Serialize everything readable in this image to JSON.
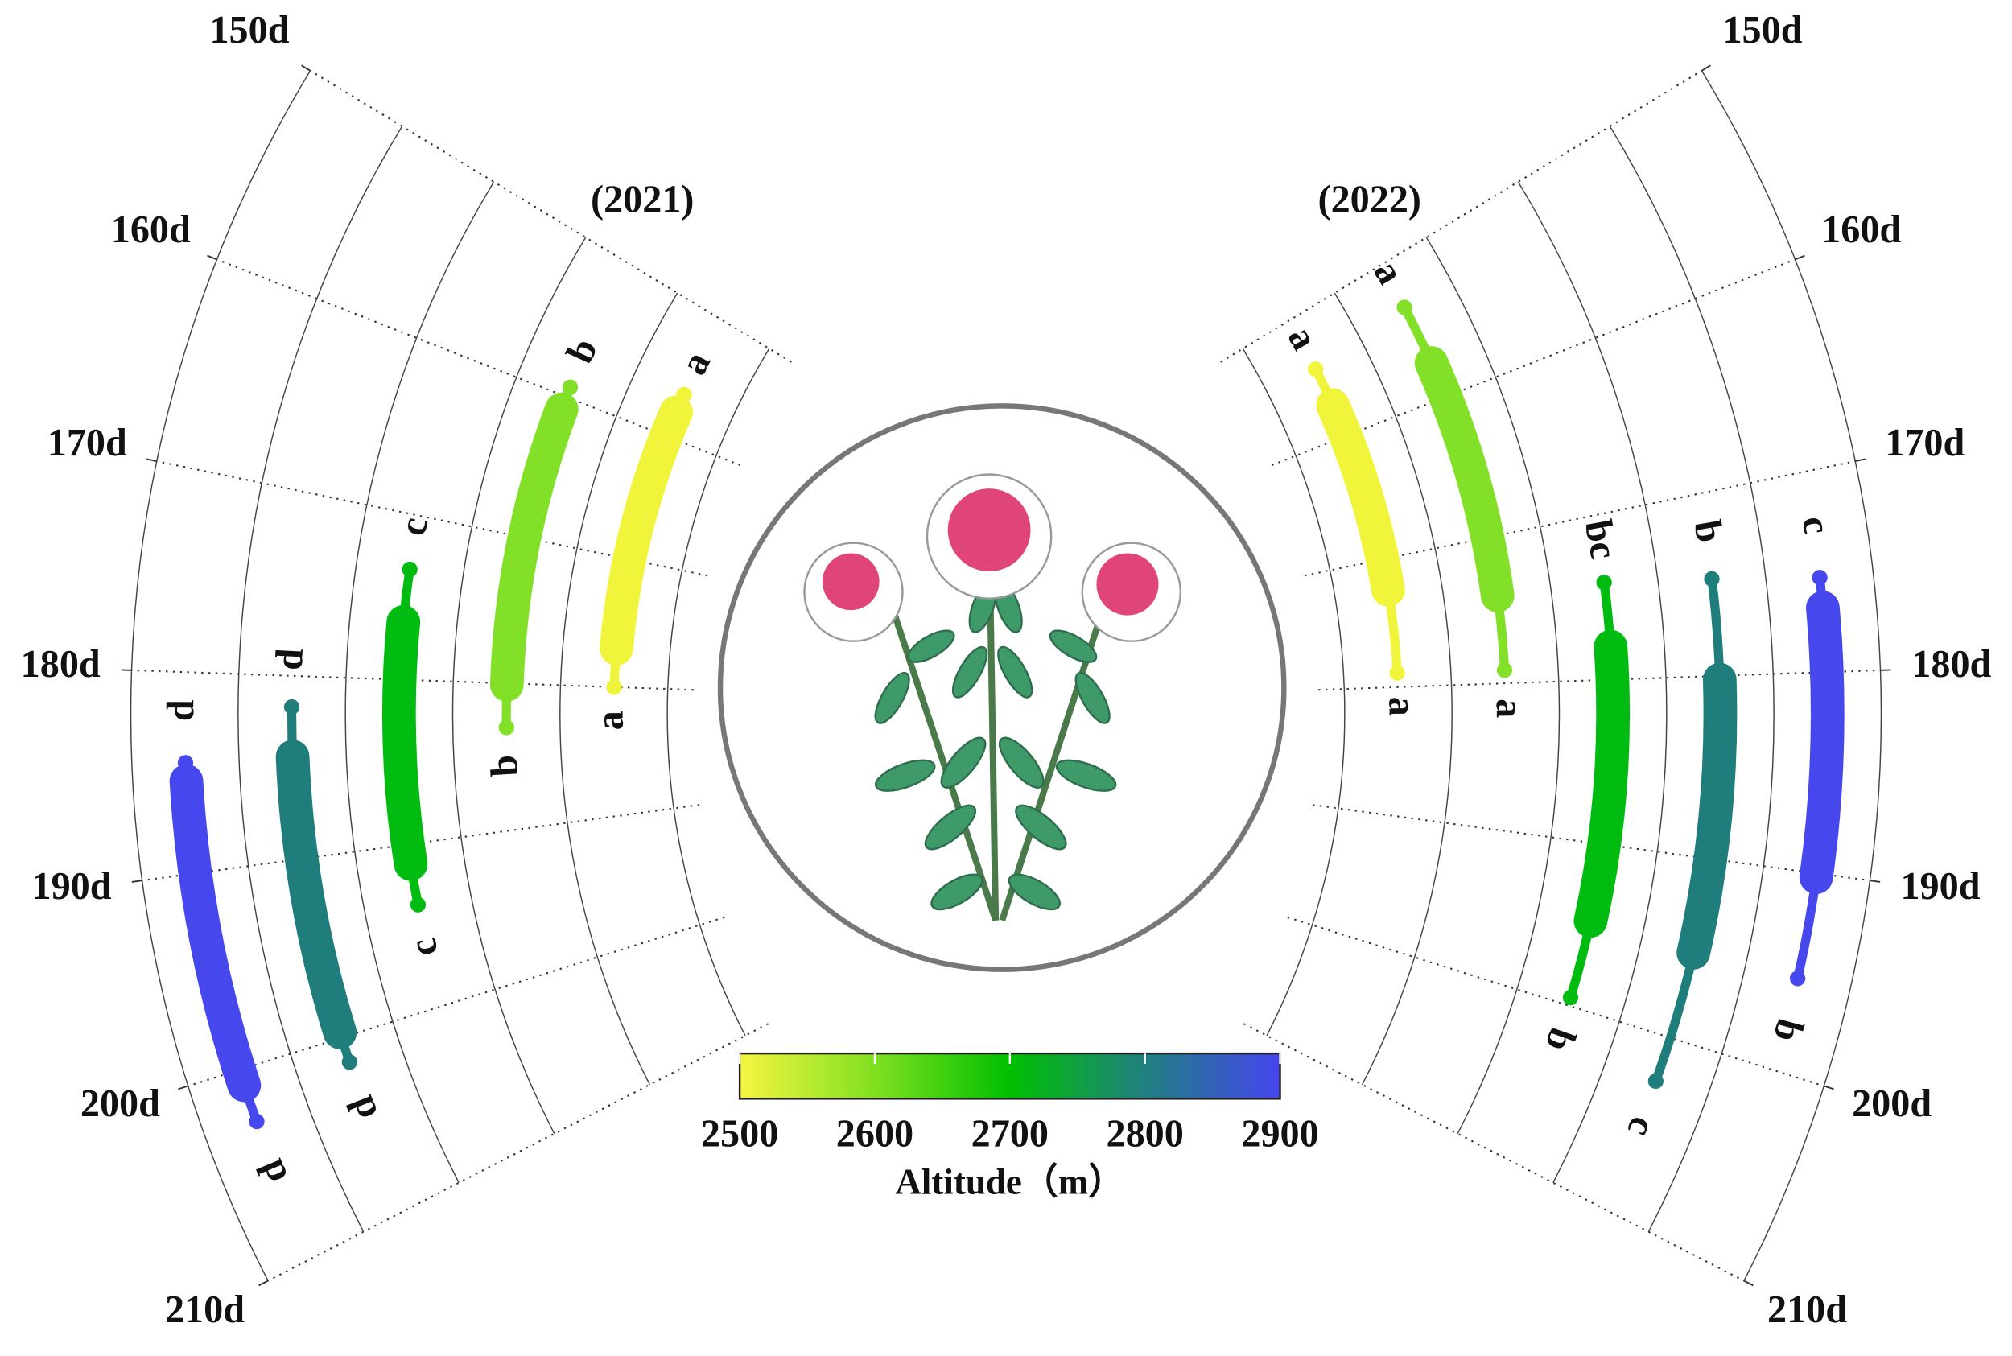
{
  "chart_data": {
    "type": "polar-range",
    "axis": {
      "lim": [
        150,
        210
      ],
      "ticks": [
        {
          "value": 150,
          "label": "150d"
        },
        {
          "value": 160,
          "label": "160d"
        },
        {
          "value": 170,
          "label": "170d"
        },
        {
          "value": 180,
          "label": "180d"
        },
        {
          "value": 190,
          "label": "190d"
        },
        {
          "value": 200,
          "label": "200d"
        },
        {
          "value": 210,
          "label": "210d"
        }
      ]
    },
    "panels": [
      {
        "label": "(2021)",
        "side": "left",
        "bars": [
          {
            "color": "#f0f53c",
            "values": [
              156.5,
              158,
              177,
              180
            ],
            "letters": [
              "a",
              "a"
            ]
          },
          {
            "color": "#82e028",
            "values": [
              159.3,
              160.9,
              180.1,
              183
            ],
            "letters": [
              "b",
              "b"
            ]
          },
          {
            "color": "#00bb10",
            "values": [
              173.3,
              176.5,
              191.2,
              193.7
            ],
            "letters": [
              "c",
              "c"
            ]
          },
          {
            "color": "#1f7e7c",
            "values": [
              181.7,
              184.4,
              199.7,
              201.4
            ],
            "letters": [
              "d",
              "d"
            ]
          },
          {
            "color": "#4648ee",
            "values": [
              184.5,
              185.4,
              200.8,
              202.7
            ],
            "letters": [
              "d",
              "d"
            ]
          }
        ]
      },
      {
        "label": "(2022)",
        "side": "right",
        "bars": [
          {
            "color": "#f0f53c",
            "values": [
              154.3,
              157.4,
              172.4,
              178.9
            ],
            "letters": [
              "a",
              "a"
            ]
          },
          {
            "color": "#82e028",
            "values": [
              153.3,
              157.5,
              174,
              179.1
            ],
            "letters": [
              "a",
              "a"
            ]
          },
          {
            "color": "#00bb10",
            "values": [
              174.1,
              178,
              194.7,
              199.5
            ],
            "letters": [
              "bc",
              "b"
            ]
          },
          {
            "color": "#1f7e7c",
            "values": [
              174.7,
              180.2,
              195.2,
              202.5
            ],
            "letters": [
              "b",
              "c"
            ]
          },
          {
            "color": "#4648ee",
            "values": [
              175.3,
              176.8,
              190.2,
              195.3
            ],
            "letters": [
              "c",
              "b"
            ]
          }
        ]
      }
    ],
    "colorbar": {
      "title": "Altitude（m）",
      "lim": [
        2500,
        2900
      ],
      "ticks": [
        2500,
        2600,
        2700,
        2800,
        2900
      ],
      "colors": [
        "#f5f540",
        "#80e020",
        "#00c000",
        "#208080",
        "#4545f0"
      ]
    }
  }
}
